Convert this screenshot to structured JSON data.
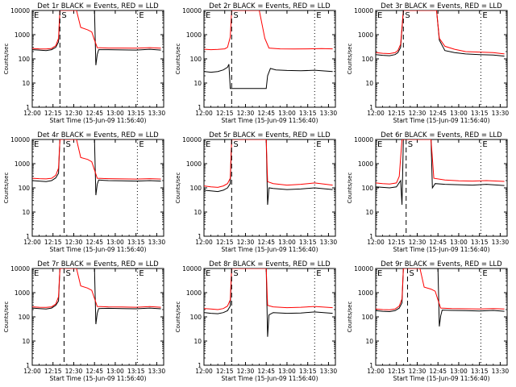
{
  "axes": {
    "x_ticks": [
      "12:00",
      "12:15",
      "12:30",
      "12:45",
      "13:00",
      "13:15",
      "13:30"
    ],
    "y_ticks": [
      "1",
      "10",
      "100",
      "1000",
      "10000"
    ],
    "ylabel": "Counts/sec",
    "xlabel": "Start Time (15-Jun-09 11:56:40)"
  },
  "colors": {
    "events": "#000000",
    "lld": "#ff0000"
  },
  "chart_data": [
    {
      "type": "line",
      "title": "Det 1r BLACK = Events, RED = LLD",
      "xlabel": "Start Time (15-Jun-09 11:56:40)",
      "ylabel": "Counts/sec",
      "ylim": [
        1,
        10000
      ],
      "yscale": "log",
      "xlim": [
        "12:00",
        "13:35"
      ],
      "markers": [
        {
          "label": "E",
          "time": "12:00"
        },
        {
          "label": "S",
          "time": "12:20"
        },
        {
          "label": "E",
          "time": "13:16"
        }
      ],
      "series": [
        {
          "name": "BLACK = Events",
          "x": [
            "12:00",
            "12:05",
            "12:10",
            "12:14",
            "12:17",
            "12:19",
            "12:20",
            "12:40",
            "12:45",
            "12:46",
            "12:47",
            "12:48",
            "12:55",
            "13:05",
            "13:15",
            "13:25",
            "13:33"
          ],
          "values": [
            240,
            230,
            220,
            240,
            300,
            500,
            10000,
            10000,
            10000,
            55,
            150,
            240,
            240,
            235,
            230,
            250,
            230
          ]
        },
        {
          "name": "RED = LLD",
          "x": [
            "12:00",
            "12:05",
            "12:10",
            "12:14",
            "12:17",
            "12:19",
            "12:20",
            "12:32",
            "12:35",
            "12:40",
            "12:43",
            "12:45",
            "12:47",
            "12:55",
            "13:05",
            "13:15",
            "13:25",
            "13:33"
          ],
          "values": [
            270,
            260,
            255,
            270,
            350,
            700,
            10000,
            10000,
            2000,
            1600,
            1300,
            600,
            290,
            280,
            280,
            275,
            290,
            275
          ]
        }
      ]
    },
    {
      "type": "line",
      "title": "Det 2r BLACK = Events, RED = LLD",
      "xlabel": "Start Time (15-Jun-09 11:56:40)",
      "ylabel": "Counts/sec",
      "ylim": [
        1,
        10000
      ],
      "yscale": "log",
      "xlim": [
        "12:00",
        "13:35"
      ],
      "markers": [
        {
          "label": "E",
          "time": "12:00"
        },
        {
          "label": "S",
          "time": "12:20"
        },
        {
          "label": "E",
          "time": "13:20"
        }
      ],
      "series": [
        {
          "name": "BLACK = Events",
          "x": [
            "12:00",
            "12:05",
            "12:10",
            "12:14",
            "12:17",
            "12:18",
            "12:19",
            "12:45",
            "12:46",
            "12:48",
            "12:52",
            "13:00",
            "13:10",
            "13:20",
            "13:33"
          ],
          "values": [
            30,
            28,
            30,
            35,
            45,
            60,
            6,
            6,
            20,
            40,
            35,
            33,
            32,
            34,
            30
          ]
        },
        {
          "name": "RED = LLD",
          "x": [
            "12:00",
            "12:05",
            "12:10",
            "12:15",
            "12:17",
            "12:19",
            "12:20",
            "12:30",
            "12:40",
            "12:44",
            "12:47",
            "12:55",
            "13:05",
            "13:15",
            "13:25",
            "13:33"
          ],
          "values": [
            250,
            240,
            245,
            260,
            300,
            800,
            10000,
            10000,
            10000,
            700,
            280,
            260,
            255,
            260,
            265,
            260
          ]
        }
      ]
    },
    {
      "type": "line",
      "title": "Det 3r BLACK = Events, RED = LLD",
      "xlabel": "Start Time (15-Jun-09 11:56:40)",
      "ylabel": "Counts/sec",
      "ylim": [
        1,
        10000
      ],
      "yscale": "log",
      "xlim": [
        "12:00",
        "13:35"
      ],
      "markers": [
        {
          "label": "E",
          "time": "12:00"
        },
        {
          "label": "S",
          "time": "12:20"
        },
        {
          "label": "E",
          "time": "13:16"
        }
      ],
      "series": [
        {
          "name": "BLACK = Events",
          "x": [
            "12:00",
            "12:05",
            "12:10",
            "12:14",
            "12:16",
            "12:18",
            "12:20",
            "12:44",
            "12:46",
            "12:50",
            "12:57",
            "13:05",
            "13:15",
            "13:25",
            "13:33"
          ],
          "values": [
            150,
            140,
            135,
            150,
            180,
            300,
            10000,
            10000,
            600,
            220,
            180,
            160,
            150,
            145,
            130
          ]
        },
        {
          "name": "RED = LLD",
          "x": [
            "12:00",
            "12:05",
            "12:10",
            "12:14",
            "12:16",
            "12:18",
            "12:20",
            "12:44",
            "12:46",
            "12:50",
            "12:57",
            "13:05",
            "13:15",
            "13:25",
            "13:33"
          ],
          "values": [
            180,
            170,
            165,
            180,
            220,
            400,
            10000,
            10000,
            700,
            330,
            250,
            200,
            190,
            180,
            160
          ]
        }
      ]
    },
    {
      "type": "line",
      "title": "Det 4r BLACK = Events, RED = LLD",
      "xlabel": "Start Time (15-Jun-09 11:56:40)",
      "ylabel": "Counts/sec",
      "ylim": [
        1,
        10000
      ],
      "yscale": "log",
      "xlim": [
        "12:00",
        "13:35"
      ],
      "markers": [
        {
          "label": "E",
          "time": "12:00"
        },
        {
          "label": "S",
          "time": "12:23"
        },
        {
          "label": "E",
          "time": "13:16"
        }
      ],
      "series": [
        {
          "name": "BLACK = Events",
          "x": [
            "12:00",
            "12:05",
            "12:10",
            "12:14",
            "12:17",
            "12:19",
            "12:20",
            "12:40",
            "12:45",
            "12:46",
            "12:47",
            "12:48",
            "12:55",
            "13:05",
            "13:15",
            "13:25",
            "13:33"
          ],
          "values": [
            200,
            190,
            180,
            200,
            260,
            400,
            10000,
            10000,
            10000,
            50,
            140,
            210,
            200,
            195,
            190,
            200,
            190
          ]
        },
        {
          "name": "RED = LLD",
          "x": [
            "12:00",
            "12:05",
            "12:10",
            "12:14",
            "12:17",
            "12:19",
            "12:20",
            "12:32",
            "12:35",
            "12:40",
            "12:43",
            "12:45",
            "12:47",
            "12:55",
            "13:05",
            "13:15",
            "13:25",
            "13:33"
          ],
          "values": [
            250,
            240,
            235,
            250,
            330,
            650,
            10000,
            10000,
            1800,
            1500,
            1200,
            550,
            250,
            240,
            235,
            230,
            240,
            230
          ]
        }
      ]
    },
    {
      "type": "line",
      "title": "Det 5r BLACK = Events, RED = LLD",
      "xlabel": "Start Time (15-Jun-09 11:56:40)",
      "ylabel": "Counts/sec",
      "ylim": [
        1,
        10000
      ],
      "yscale": "log",
      "xlim": [
        "12:00",
        "13:35"
      ],
      "markers": [
        {
          "label": "E",
          "time": "12:00"
        },
        {
          "label": "S",
          "time": "12:20"
        },
        {
          "label": "E",
          "time": "13:20"
        }
      ],
      "series": [
        {
          "name": "BLACK = Events",
          "x": [
            "12:00",
            "12:05",
            "12:10",
            "12:14",
            "12:17",
            "12:19",
            "12:20",
            "12:45",
            "12:46",
            "12:47",
            "12:50",
            "13:00",
            "13:10",
            "13:20",
            "13:33"
          ],
          "values": [
            80,
            75,
            70,
            80,
            100,
            150,
            10000,
            10000,
            20,
            100,
            95,
            85,
            90,
            100,
            85
          ]
        },
        {
          "name": "RED = LLD",
          "x": [
            "12:00",
            "12:05",
            "12:10",
            "12:14",
            "12:17",
            "12:19",
            "12:20",
            "12:45",
            "12:46",
            "12:50",
            "13:00",
            "13:10",
            "13:20",
            "13:33"
          ],
          "values": [
            120,
            110,
            105,
            120,
            150,
            250,
            10000,
            10000,
            180,
            150,
            130,
            140,
            160,
            130
          ]
        }
      ]
    },
    {
      "type": "line",
      "title": "Det 6r BLACK = Events, RED = LLD",
      "xlabel": "Start Time (15-Jun-09 11:56:40)",
      "ylabel": "Counts/sec",
      "ylim": [
        1,
        10000
      ],
      "yscale": "log",
      "xlim": [
        "12:00",
        "13:35"
      ],
      "markers": [
        {
          "label": "E",
          "time": "12:00"
        },
        {
          "label": "S",
          "time": "12:22"
        },
        {
          "label": "E",
          "time": "13:16"
        }
      ],
      "series": [
        {
          "name": "BLACK = Events",
          "x": [
            "12:00",
            "12:05",
            "12:10",
            "12:15",
            "12:18",
            "12:19",
            "12:20",
            "12:40",
            "12:41",
            "12:43",
            "12:50",
            "13:00",
            "13:10",
            "13:20",
            "13:33"
          ],
          "values": [
            110,
            105,
            100,
            110,
            200,
            20,
            10000,
            10000,
            100,
            150,
            140,
            135,
            130,
            140,
            125
          ]
        },
        {
          "name": "RED = LLD",
          "x": [
            "12:00",
            "12:05",
            "12:10",
            "12:15",
            "12:17",
            "12:19",
            "12:20",
            "12:40",
            "12:42",
            "12:50",
            "13:00",
            "13:10",
            "13:20",
            "13:33"
          ],
          "values": [
            160,
            150,
            145,
            160,
            300,
            10000,
            10000,
            10000,
            250,
            210,
            195,
            190,
            200,
            185
          ]
        }
      ]
    },
    {
      "type": "line",
      "title": "Det 7r BLACK = Events, RED = LLD",
      "xlabel": "Start Time (15-Jun-09 11:56:40)",
      "ylabel": "Counts/sec",
      "ylim": [
        1,
        10000
      ],
      "yscale": "log",
      "xlim": [
        "12:00",
        "13:35"
      ],
      "markers": [
        {
          "label": "E",
          "time": "12:00"
        },
        {
          "label": "S",
          "time": "12:23"
        },
        {
          "label": "E",
          "time": "13:16"
        }
      ],
      "series": [
        {
          "name": "BLACK = Events",
          "x": [
            "12:00",
            "12:05",
            "12:10",
            "12:14",
            "12:17",
            "12:19",
            "12:20",
            "12:40",
            "12:45",
            "12:46",
            "12:47",
            "12:48",
            "12:55",
            "13:05",
            "13:15",
            "13:25",
            "13:33"
          ],
          "values": [
            230,
            220,
            210,
            230,
            300,
            450,
            10000,
            10000,
            10000,
            50,
            140,
            220,
            225,
            220,
            215,
            230,
            215
          ]
        },
        {
          "name": "RED = LLD",
          "x": [
            "12:00",
            "12:05",
            "12:10",
            "12:14",
            "12:17",
            "12:19",
            "12:20",
            "12:32",
            "12:35",
            "12:40",
            "12:43",
            "12:45",
            "12:47",
            "12:55",
            "13:05",
            "13:15",
            "13:25",
            "13:33"
          ],
          "values": [
            260,
            250,
            245,
            260,
            340,
            680,
            10000,
            10000,
            1900,
            1550,
            1250,
            580,
            270,
            260,
            255,
            250,
            265,
            250
          ]
        }
      ]
    },
    {
      "type": "line",
      "title": "Det 8r BLACK = Events, RED = LLD",
      "xlabel": "Start Time (15-Jun-09 11:56:40)",
      "ylabel": "Counts/sec",
      "ylim": [
        1,
        10000
      ],
      "yscale": "log",
      "xlim": [
        "12:00",
        "13:35"
      ],
      "markers": [
        {
          "label": "E",
          "time": "12:00"
        },
        {
          "label": "S",
          "time": "12:20"
        },
        {
          "label": "E",
          "time": "13:20"
        }
      ],
      "series": [
        {
          "name": "BLACK = Events",
          "x": [
            "12:00",
            "12:05",
            "12:10",
            "12:14",
            "12:17",
            "12:19",
            "12:20",
            "12:45",
            "12:46",
            "12:47",
            "12:50",
            "13:00",
            "13:10",
            "13:20",
            "13:33"
          ],
          "values": [
            150,
            140,
            135,
            150,
            180,
            280,
            10000,
            10000,
            15,
            120,
            150,
            140,
            145,
            160,
            140
          ]
        },
        {
          "name": "RED = LLD",
          "x": [
            "12:00",
            "12:05",
            "12:10",
            "12:14",
            "12:17",
            "12:19",
            "12:20",
            "12:45",
            "12:46",
            "12:50",
            "13:00",
            "13:10",
            "13:20",
            "13:33"
          ],
          "values": [
            220,
            210,
            200,
            220,
            280,
            500,
            10000,
            10000,
            300,
            260,
            240,
            250,
            270,
            240
          ]
        }
      ]
    },
    {
      "type": "line",
      "title": "Det 9r BLACK = Events, RED = LLD",
      "xlabel": "Start Time (15-Jun-09 11:56:40)",
      "ylabel": "Counts/sec",
      "ylim": [
        1,
        10000
      ],
      "yscale": "log",
      "xlim": [
        "12:00",
        "13:35"
      ],
      "markers": [
        {
          "label": "E",
          "time": "12:00"
        },
        {
          "label": "S",
          "time": "12:23"
        },
        {
          "label": "E",
          "time": "13:16"
        }
      ],
      "series": [
        {
          "name": "BLACK = Events",
          "x": [
            "12:00",
            "12:05",
            "12:10",
            "12:14",
            "12:17",
            "12:19",
            "12:20",
            "12:40",
            "12:45",
            "12:46",
            "12:47",
            "12:48",
            "12:55",
            "13:05",
            "13:15",
            "13:25",
            "13:33"
          ],
          "values": [
            180,
            170,
            165,
            180,
            230,
            380,
            10000,
            10000,
            10000,
            40,
            110,
            190,
            185,
            180,
            175,
            185,
            170
          ]
        },
        {
          "name": "RED = LLD",
          "x": [
            "12:00",
            "12:05",
            "12:10",
            "12:14",
            "12:17",
            "12:19",
            "12:20",
            "12:32",
            "12:35",
            "12:40",
            "12:43",
            "12:45",
            "12:47",
            "12:55",
            "13:05",
            "13:15",
            "13:25",
            "13:33"
          ],
          "values": [
            210,
            200,
            195,
            210,
            280,
            550,
            10000,
            10000,
            1700,
            1400,
            1150,
            500,
            230,
            220,
            215,
            210,
            220,
            210
          ]
        }
      ]
    }
  ]
}
